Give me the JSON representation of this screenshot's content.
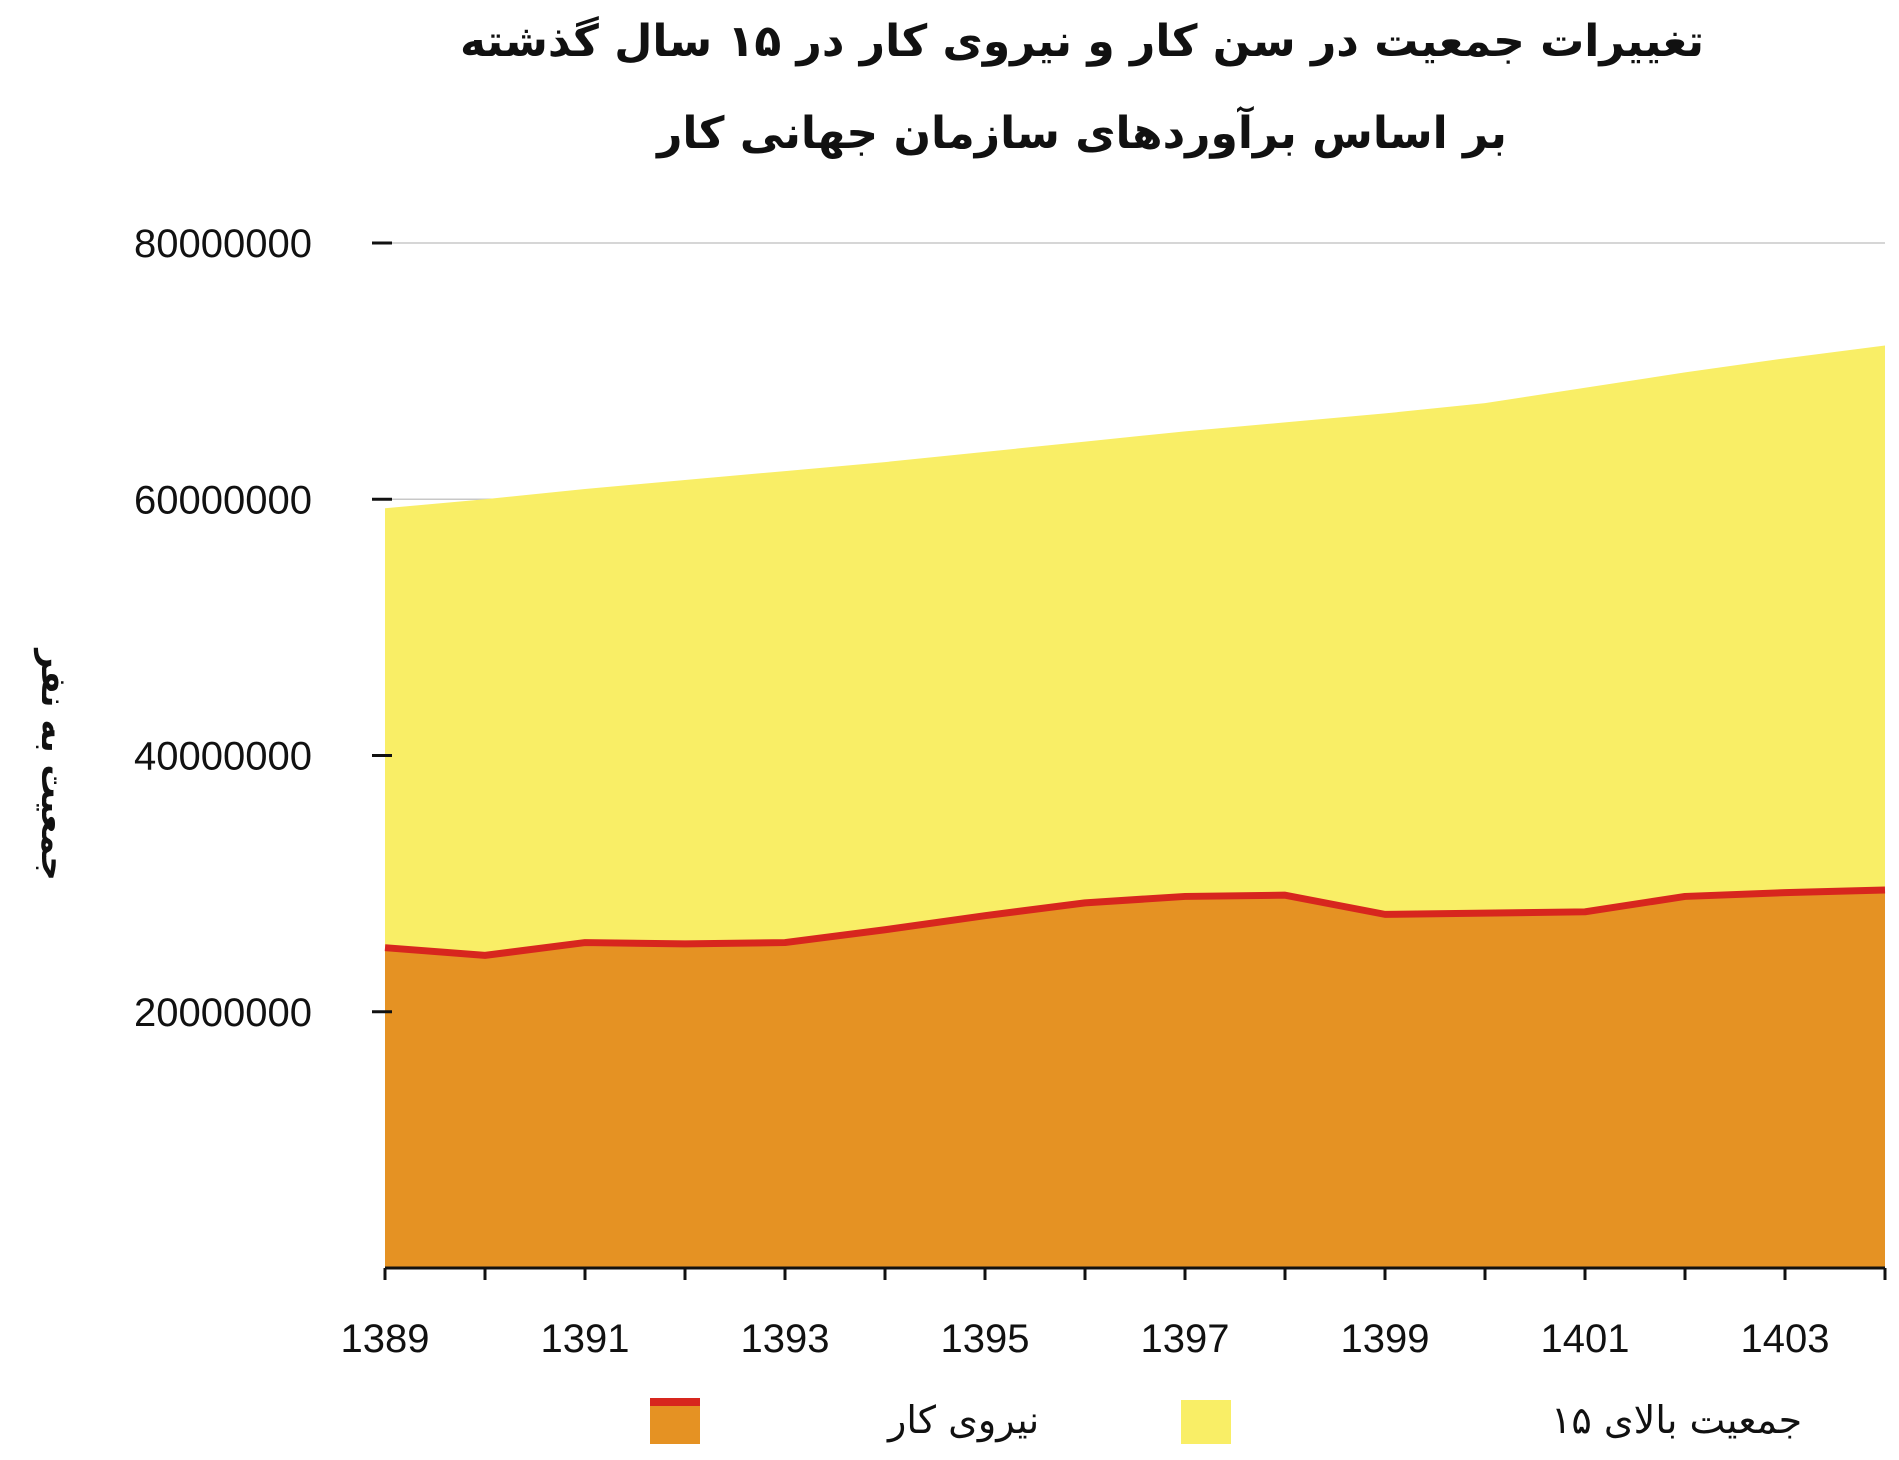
{
  "chart_data": {
    "type": "area",
    "title_line1": "تغییرات جمعیت در سن کار و نیروی کار در ۱۵ سال گذشته",
    "title_line2": "بر اساس برآوردهای سازمان جهانی کار",
    "ylabel": "جمعیت به نفر",
    "xlabel": "",
    "x": [
      1389,
      1390,
      1391,
      1392,
      1393,
      1394,
      1395,
      1396,
      1397,
      1398,
      1399,
      1400,
      1401,
      1402,
      1403,
      1404
    ],
    "x_tick_labels": [
      "1389",
      "1391",
      "1393",
      "1395",
      "1397",
      "1399",
      "1401",
      "1403"
    ],
    "x_tick_label_years": [
      1389,
      1391,
      1393,
      1395,
      1397,
      1399,
      1401,
      1403
    ],
    "y_ticks": [
      20000000,
      40000000,
      60000000,
      80000000
    ],
    "y_tick_labels": [
      "20000000",
      "40000000",
      "60000000",
      "80000000"
    ],
    "ylim": [
      0,
      80000000
    ],
    "grid": "horizontal",
    "legend_position": "bottom",
    "series": [
      {
        "name": "جمعیت بالای ۱۵",
        "color": "#F9EE66",
        "values": [
          59300000,
          60000000,
          60800000,
          61500000,
          62200000,
          62900000,
          63700000,
          64500000,
          65300000,
          66000000,
          66700000,
          67500000,
          68700000,
          69900000,
          71000000,
          72000000
        ]
      },
      {
        "name": "نیروی کار",
        "color": "#E59223",
        "line_color": "#D7261E",
        "values": [
          25000000,
          24400000,
          25400000,
          25300000,
          25400000,
          26400000,
          27500000,
          28500000,
          29000000,
          29100000,
          27600000,
          27700000,
          27800000,
          29000000,
          29300000,
          29500000
        ]
      }
    ]
  }
}
